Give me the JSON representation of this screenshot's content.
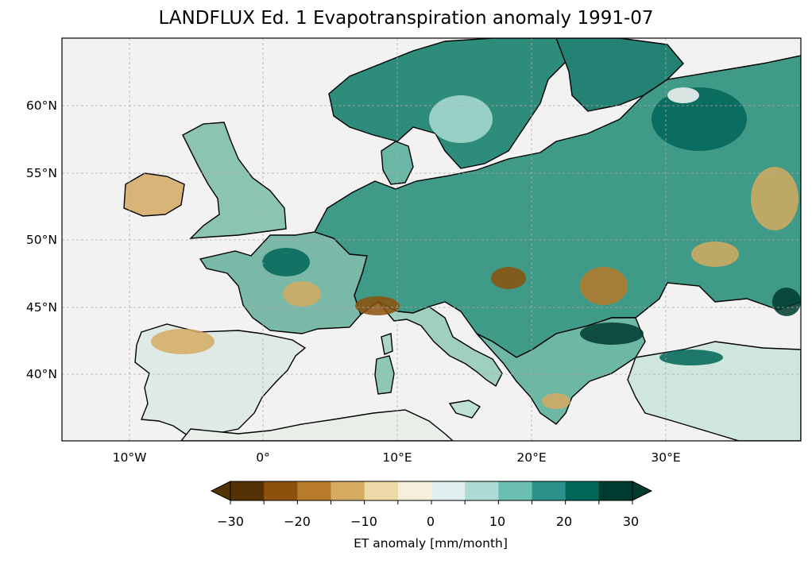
{
  "title": "LANDFLUX Ed. 1 Evapotranspiration anomaly 1991-07",
  "map": {
    "region": "Europe",
    "lon_range": [
      -15,
      40
    ],
    "lat_range": [
      35,
      65
    ],
    "gridlines": true,
    "lat_ticks": [
      {
        "value": 60,
        "label": "60°N"
      },
      {
        "value": 55,
        "label": "55°N"
      },
      {
        "value": 50,
        "label": "50°N"
      },
      {
        "value": 45,
        "label": "45°N"
      },
      {
        "value": 40,
        "label": "40°N"
      }
    ],
    "lon_ticks": [
      {
        "value": -10,
        "label": "10°W"
      },
      {
        "value": 0,
        "label": "0°"
      },
      {
        "value": 10,
        "label": "10°E"
      },
      {
        "value": 20,
        "label": "20°E"
      },
      {
        "value": 30,
        "label": "30°E"
      }
    ],
    "ocean_color": "#f2f2f2",
    "coastline_color": "#000000"
  },
  "colorbar": {
    "label": "ET anomaly [mm/month]",
    "min": -30,
    "max": 30,
    "extend": "both",
    "tick_labels": [
      "−30",
      "−20",
      "−10",
      "0",
      "10",
      "20",
      "30"
    ],
    "colors": [
      "#553205",
      "#8c520b",
      "#b77b2b",
      "#d5ab61",
      "#eed9a8",
      "#f5efdc",
      "#e0f0ef",
      "#acdcd4",
      "#6bbfb1",
      "#2d918a",
      "#016658",
      "#003b2f"
    ]
  }
}
